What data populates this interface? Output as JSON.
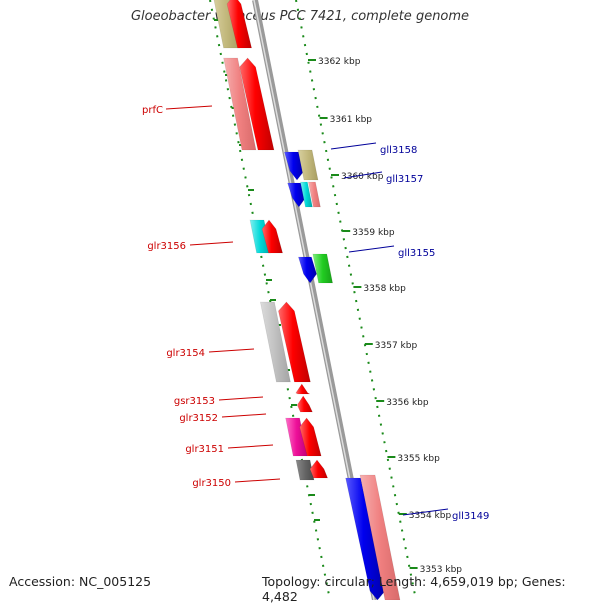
{
  "title": "Gloeobacter violaceus PCC 7421, complete genome",
  "footer": {
    "accession": "Accession: NC_005125",
    "summary": "Topology: circular; Length: 4,659,019 bp; Genes: 4,482"
  },
  "scale": {
    "ticks": [
      {
        "label": "3362 kbp"
      },
      {
        "label": "3361 kbp"
      },
      {
        "label": "3360 kbp"
      },
      {
        "label": "3359 kbp"
      },
      {
        "label": "3358 kbp"
      },
      {
        "label": "3357 kbp"
      },
      {
        "label": "3356 kbp"
      },
      {
        "label": "3355 kbp"
      },
      {
        "label": "3354 kbp"
      },
      {
        "label": "3353 kbp"
      }
    ]
  },
  "genes": [
    {
      "label": "prfC",
      "strand": "minus",
      "color": "#cc0000"
    },
    {
      "label": "gll3158",
      "strand": "plus",
      "color": "#000099"
    },
    {
      "label": "gll3157",
      "strand": "plus",
      "color": "#000099"
    },
    {
      "label": "glr3156",
      "strand": "minus",
      "color": "#cc0000"
    },
    {
      "label": "gll3155",
      "strand": "plus",
      "color": "#000099"
    },
    {
      "label": "glr3154",
      "strand": "minus",
      "color": "#cc0000"
    },
    {
      "label": "gsr3153",
      "strand": "minus",
      "color": "#cc0000"
    },
    {
      "label": "glr3152",
      "strand": "minus",
      "color": "#cc0000"
    },
    {
      "label": "glr3151",
      "strand": "minus",
      "color": "#cc0000"
    },
    {
      "label": "glr3150",
      "strand": "minus",
      "color": "#cc0000"
    },
    {
      "label": "gll3149",
      "strand": "plus",
      "color": "#000099"
    }
  ],
  "colors": {
    "forward_cds": "#ff0000",
    "reverse_cds": "#0000ee",
    "tick_dots": "#1a8a1a",
    "backbone": "#888888"
  }
}
